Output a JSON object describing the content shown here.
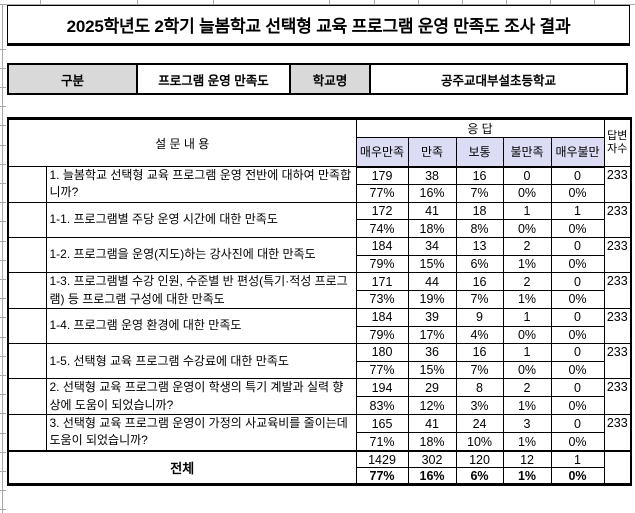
{
  "title": "2025학년도 2학기 늘봄학교 선택형 교육 프로그램 운영 만족도 조사 결과",
  "info_bar": {
    "label1": "구분",
    "value1": "프로그램 운영 만족도",
    "label2": "학교명",
    "value2": "공주교대부설초등학교"
  },
  "table": {
    "question_header": "설 문 내 용",
    "response_header": "응  답",
    "respondents_header": "답변자수",
    "scale_labels": [
      "매우만족",
      "만족",
      "보통",
      "불만족",
      "매우불만"
    ],
    "rows": [
      {
        "question": "1. 늘봄학교 선택형 교육 프로그램 운영 전반에 대하여 만족합니까?",
        "counts": [
          "179",
          "38",
          "16",
          "0",
          "0"
        ],
        "percents": [
          "77%",
          "16%",
          "7%",
          "0%",
          "0%"
        ],
        "respondents": "233"
      },
      {
        "question": "1-1. 프로그램별 주당 운영 시간에 대한 만족도",
        "counts": [
          "172",
          "41",
          "18",
          "1",
          "1"
        ],
        "percents": [
          "74%",
          "18%",
          "8%",
          "0%",
          "0%"
        ],
        "respondents": "233"
      },
      {
        "question": "1-2. 프로그램을 운영(지도)하는 강사진에 대한 만족도",
        "counts": [
          "184",
          "34",
          "13",
          "2",
          "0"
        ],
        "percents": [
          "79%",
          "15%",
          "6%",
          "1%",
          "0%"
        ],
        "respondents": "233"
      },
      {
        "question": "1-3. 프로그램별 수강 인원, 수준별 반 편성(특기·적성 프로그램) 등 프로그램 구성에 대한 만족도",
        "counts": [
          "171",
          "44",
          "16",
          "2",
          "0"
        ],
        "percents": [
          "73%",
          "19%",
          "7%",
          "1%",
          "0%"
        ],
        "respondents": "233"
      },
      {
        "question": "1-4. 프로그램 운영 환경에 대한 만족도",
        "counts": [
          "184",
          "39",
          "9",
          "1",
          "0"
        ],
        "percents": [
          "79%",
          "17%",
          "4%",
          "0%",
          "0%"
        ],
        "respondents": "233"
      },
      {
        "question": "1-5. 선택형 교육 프로그램 수강료에 대한 만족도",
        "counts": [
          "180",
          "36",
          "16",
          "1",
          "0"
        ],
        "percents": [
          "77%",
          "15%",
          "7%",
          "0%",
          "0%"
        ],
        "respondents": "233"
      },
      {
        "question": "2. 선택형 교육 프로그램 운영이 학생의 특기 계발과 실력 향상에 도움이 되었습니까?",
        "counts": [
          "194",
          "29",
          "8",
          "2",
          "0"
        ],
        "percents": [
          "83%",
          "12%",
          "3%",
          "1%",
          "0%"
        ],
        "respondents": "233"
      },
      {
        "question": "3. 선택형 교육 프로그램 운영이 가정의 사교육비를 줄이는데 도움이 되었습니까?",
        "counts": [
          "165",
          "41",
          "24",
          "3",
          "0"
        ],
        "percents": [
          "71%",
          "18%",
          "10%",
          "1%",
          "0%"
        ],
        "respondents": "233"
      }
    ],
    "total": {
      "label": "전체",
      "counts": [
        "1429",
        "302",
        "120",
        "12",
        "1"
      ],
      "percents": [
        "77%",
        "16%",
        "6%",
        "1%",
        "0%"
      ],
      "respondents": ""
    }
  },
  "colors": {
    "header_gray": "#d9d9d9",
    "scale_lavender": "#dcdcf4",
    "border_black": "#000000",
    "gridline_gray": "#a8a8a8"
  }
}
